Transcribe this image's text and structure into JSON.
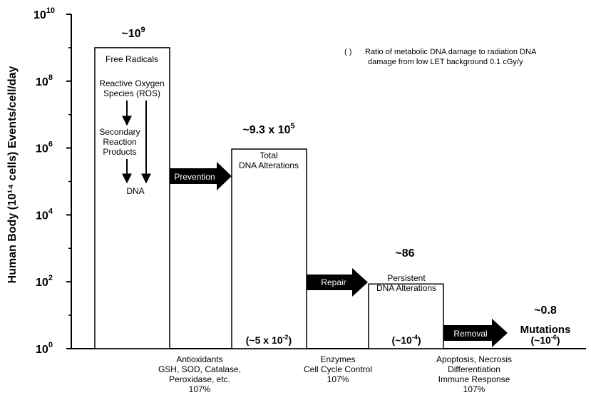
{
  "chart_data": {
    "type": "bar",
    "y_scale": "log",
    "ylim": [
      1,
      10000000000
    ],
    "ylabel": "Human Body (10¹⁴ cells) Events/cell/day",
    "y_ticks": [
      {
        "base": "10",
        "exp": "0",
        "value": 1
      },
      {
        "base": "10",
        "exp": "2",
        "value": 100
      },
      {
        "base": "10",
        "exp": "4",
        "value": 10000
      },
      {
        "base": "10",
        "exp": "6",
        "value": 1000000
      },
      {
        "base": "10",
        "exp": "8",
        "value": 100000000
      },
      {
        "base": "10",
        "exp": "10",
        "value": 10000000000
      }
    ],
    "legend_note": {
      "symbol": "( )",
      "lines": [
        "Ratio of metabolic DNA damage to radiation DNA",
        "damage from low LET background 0.1 cGy/y"
      ]
    },
    "bars": [
      {
        "value": 1000000000,
        "top_label": {
          "base": "~10",
          "sup": "9",
          "rest": ""
        },
        "text_lines": [
          "Free Radicals",
          "Reactive Oxygen",
          "Species (ROS)",
          "Secondary",
          "Reaction",
          "Products",
          "DNA"
        ],
        "ratio": null
      },
      {
        "value": 930000,
        "top_label": {
          "base": "~9.3 x 10",
          "sup": "5",
          "rest": ""
        },
        "text_lines": [
          "Total",
          "DNA Alterations"
        ],
        "ratio": {
          "pre": "(~5 x 10",
          "sup": "-2",
          "post": ")"
        }
      },
      {
        "value": 86,
        "top_label": {
          "base": "~86",
          "sup": "",
          "rest": ""
        },
        "text_lines": [
          "Persistent",
          "DNA Alterations"
        ],
        "ratio": {
          "pre": "(~10",
          "sup": "-4",
          "post": ")"
        }
      },
      {
        "value": 0.8,
        "top_label": {
          "base": "~0.8",
          "sup": "",
          "rest": ""
        },
        "text_lines": [
          "Mutations"
        ],
        "ratio": {
          "pre": "(~10",
          "sup": "-6",
          "post": ")"
        }
      }
    ],
    "arrows": [
      "Prevention",
      "Repair",
      "Removal"
    ],
    "bottom_captions": [
      [
        "Antioxidants",
        "GSH, SOD, Catalase,",
        "Peroxidase, etc.",
        "107%"
      ],
      [
        "Enzymes",
        "Cell Cycle Control",
        "107%"
      ],
      [
        "Apoptosis, Necrosis",
        "Differentiation",
        "Immune Response",
        "107%"
      ]
    ]
  },
  "colors": {
    "ink": "#000000",
    "background": "#ffffff"
  }
}
